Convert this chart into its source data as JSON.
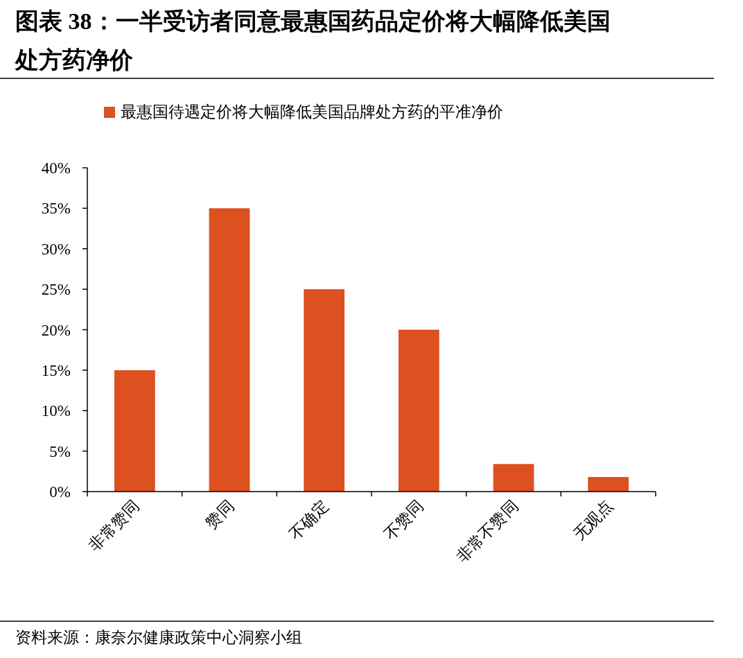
{
  "chart_data": {
    "type": "bar",
    "title": "图表 38：一半受访者同意最惠国药品定价将大幅降低美国处方药净价",
    "categories": [
      "非常赞同",
      "赞同",
      "不确定",
      "不赞同",
      "非常不赞同",
      "无观点"
    ],
    "series": [
      {
        "name": "最惠国待遇定价将大幅降低美国品牌处方药的平准净价",
        "color": "#dd5020",
        "values": [
          15,
          35,
          25,
          20,
          3.4,
          1.8
        ]
      }
    ],
    "ylim": [
      0,
      40
    ],
    "yticks": [
      {
        "value": 0,
        "label": "0%"
      },
      {
        "value": 5,
        "label": "5%"
      },
      {
        "value": 10,
        "label": "10%"
      },
      {
        "value": 15,
        "label": "15%"
      },
      {
        "value": 20,
        "label": "20%"
      },
      {
        "value": 25,
        "label": "25%"
      },
      {
        "value": 30,
        "label": "30%"
      },
      {
        "value": 35,
        "label": "35%"
      },
      {
        "value": 40,
        "label": "40%"
      }
    ],
    "grid": false,
    "legend": "top",
    "annotations": [
      "资料来源：康奈尔健康政策中心洞察小组"
    ]
  }
}
